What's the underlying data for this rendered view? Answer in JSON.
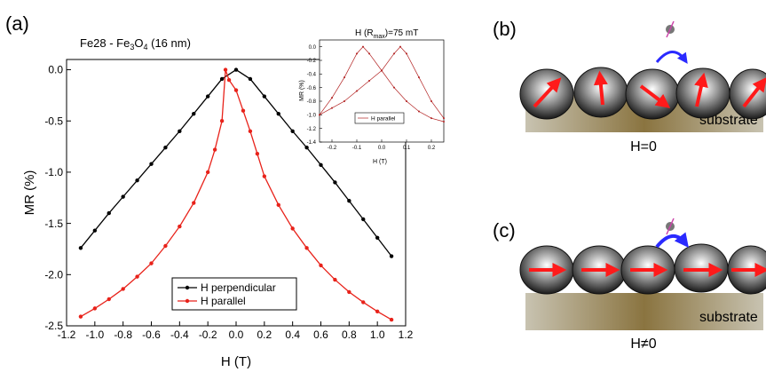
{
  "panels": {
    "a": {
      "label": "(a)"
    },
    "b": {
      "label": "(b)",
      "substrate_label": "substrate",
      "field_label": "H=0"
    },
    "c": {
      "label": "(c)",
      "substrate_label": "substrate",
      "field_label": "H≠0"
    }
  },
  "chart_data": [
    {
      "type": "line",
      "title_parts": [
        "Fe28 - Fe",
        "3",
        "O",
        "4",
        " (16 nm)"
      ],
      "xlabel": "H (T)",
      "ylabel": "MR (%)",
      "xlim": [
        -1.2,
        1.2
      ],
      "ylim": [
        -2.5,
        0.1
      ],
      "xticks": [
        -1.2,
        -1.0,
        -0.8,
        -0.6,
        -0.4,
        -0.2,
        0.0,
        0.2,
        0.4,
        0.6,
        0.8,
        1.0,
        1.2
      ],
      "xtick_labels": [
        "-1.2",
        "-1.0",
        "-0.8",
        "-0.6",
        "-0.4",
        "-0.2",
        "0.0",
        "0.2",
        "0.4",
        "0.6",
        "0.8",
        "1.0",
        "1.2"
      ],
      "yticks": [
        -2.5,
        -2.0,
        -1.5,
        -1.0,
        -0.5,
        0.0
      ],
      "ytick_labels": [
        "-2.5",
        "-2.0",
        "-1.5",
        "-1.0",
        "-0.5",
        "0.0"
      ],
      "legend_position": "bottom-center",
      "series": [
        {
          "name": "H perpendicular",
          "color": "#000000",
          "x": [
            -1.1,
            -1.0,
            -0.9,
            -0.8,
            -0.7,
            -0.6,
            -0.5,
            -0.4,
            -0.3,
            -0.2,
            -0.1,
            0.0,
            0.1,
            0.2,
            0.3,
            0.4,
            0.5,
            0.6,
            0.7,
            0.8,
            0.9,
            1.0,
            1.1
          ],
          "y": [
            -1.74,
            -1.57,
            -1.4,
            -1.24,
            -1.08,
            -0.92,
            -0.76,
            -0.6,
            -0.43,
            -0.26,
            -0.09,
            0.0,
            -0.09,
            -0.26,
            -0.43,
            -0.6,
            -0.76,
            -0.93,
            -1.1,
            -1.28,
            -1.46,
            -1.64,
            -1.82
          ]
        },
        {
          "name": "H parallel",
          "color": "#e8221a",
          "x": [
            -1.1,
            -1.0,
            -0.9,
            -0.8,
            -0.7,
            -0.6,
            -0.5,
            -0.4,
            -0.3,
            -0.2,
            -0.15,
            -0.1,
            -0.075,
            -0.05,
            0.0,
            0.05,
            0.1,
            0.15,
            0.2,
            0.3,
            0.4,
            0.5,
            0.6,
            0.7,
            0.8,
            0.9,
            1.0,
            1.1
          ],
          "y": [
            -2.41,
            -2.33,
            -2.24,
            -2.14,
            -2.02,
            -1.89,
            -1.72,
            -1.53,
            -1.3,
            -1.0,
            -0.78,
            -0.5,
            0.0,
            -0.1,
            -0.2,
            -0.4,
            -0.6,
            -0.82,
            -1.04,
            -1.32,
            -1.55,
            -1.74,
            -1.91,
            -2.05,
            -2.17,
            -2.27,
            -2.36,
            -2.44
          ]
        }
      ]
    },
    {
      "type": "line",
      "annotation": "H (R",
      "annotation_sub": "max",
      "annotation_end": ")=75 mT",
      "xlabel": "H (T)",
      "ylabel": "MR (%)",
      "xlim": [
        -0.25,
        0.25
      ],
      "ylim": [
        -1.4,
        0.1
      ],
      "xticks": [
        -0.2,
        -0.1,
        0.0,
        0.1,
        0.2
      ],
      "xtick_labels": [
        "-0.2",
        "-0.1",
        "0.0",
        "0.1",
        "0.2"
      ],
      "yticks": [
        -1.4,
        -1.2,
        -1.0,
        -0.8,
        -0.6,
        -0.4,
        -0.2,
        0.0
      ],
      "ytick_labels": [
        "-1.4",
        "-1.2",
        "-1.0",
        "-0.8",
        "-0.6",
        "-0.4",
        "-0.2",
        "0.0"
      ],
      "legend_position": "bottom-center",
      "series": [
        {
          "name": "H parallel",
          "color": "#b22222",
          "x": [
            -0.25,
            -0.2,
            -0.15,
            -0.1,
            -0.075,
            -0.05,
            0.0,
            0.05,
            0.1,
            0.15,
            0.2,
            0.25
          ],
          "y": [
            -1.0,
            -0.75,
            -0.45,
            -0.1,
            0.0,
            -0.1,
            -0.35,
            -0.6,
            -0.8,
            -0.95,
            -1.05,
            -1.1
          ]
        },
        {
          "name": "",
          "color": "#b22222",
          "x": [
            -0.25,
            -0.2,
            -0.15,
            -0.1,
            -0.05,
            0.0,
            0.05,
            0.075,
            0.1,
            0.15,
            0.2,
            0.25
          ],
          "y": [
            -1.0,
            -0.9,
            -0.8,
            -0.65,
            -0.5,
            -0.35,
            -0.1,
            0.0,
            -0.1,
            -0.45,
            -0.8,
            -1.05
          ]
        }
      ]
    }
  ]
}
